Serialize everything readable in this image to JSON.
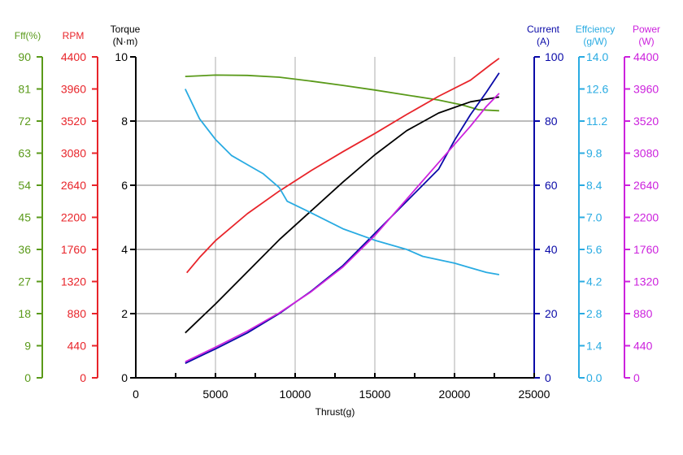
{
  "chart_data": {
    "type": "line",
    "xlabel": "Thrust(g)",
    "xlim": [
      0,
      25000
    ],
    "x_ticks": [
      0,
      5000,
      10000,
      15000,
      20000,
      25000
    ],
    "x_tick_labels": [
      "0",
      "5000",
      "10000",
      "15000",
      "20000",
      "25000"
    ],
    "grid": "vertical lines at x ticks, horizontal lines on Torque ticks",
    "axes": [
      {
        "id": "eff_pct",
        "title": "Fff(%)",
        "color": "#5a9a1a",
        "side": "left",
        "range": [
          0,
          90
        ],
        "tick_labels": [
          "0",
          "9",
          "18",
          "27",
          "36",
          "45",
          "54",
          "63",
          "72",
          "81",
          "90"
        ]
      },
      {
        "id": "rpm",
        "title": "RPM",
        "color": "#e8242a",
        "side": "left",
        "range": [
          0,
          4400
        ],
        "tick_labels": [
          "0",
          "440",
          "880",
          "1320",
          "1760",
          "2200",
          "2640",
          "3080",
          "3520",
          "3960",
          "4400"
        ]
      },
      {
        "id": "torque",
        "title": "Torque",
        "unit": "(N·m)",
        "color": "#000000",
        "side": "left",
        "range": [
          0,
          10
        ],
        "tick_labels": [
          "0",
          "2",
          "4",
          "6",
          "8",
          "10"
        ]
      },
      {
        "id": "current",
        "title": "Current",
        "unit": "(A)",
        "color": "#0a0aa8",
        "side": "right",
        "range": [
          0,
          100
        ],
        "tick_labels": [
          "0",
          "20",
          "40",
          "60",
          "80",
          "100"
        ]
      },
      {
        "id": "efficiency",
        "title": "Effciency",
        "unit": "(g/W)",
        "color": "#29abe2",
        "side": "right",
        "range": [
          0,
          14
        ],
        "tick_labels": [
          "0.0",
          "1.4",
          "2.8",
          "4.2",
          "5.6",
          "7.0",
          "8.4",
          "9.8",
          "11.2",
          "12.6",
          "14.0"
        ]
      },
      {
        "id": "power",
        "title": "Power",
        "unit": "(W)",
        "color": "#cc22dd",
        "side": "right",
        "range": [
          0,
          4400
        ],
        "tick_labels": [
          "0",
          "440",
          "880",
          "1320",
          "1760",
          "2200",
          "2640",
          "3080",
          "3520",
          "3960",
          "4400"
        ]
      }
    ],
    "series": [
      {
        "axis": "eff_pct",
        "color": "#5a9a1a",
        "points": [
          [
            3100,
            84.5
          ],
          [
            5000,
            84.9
          ],
          [
            7000,
            84.8
          ],
          [
            9000,
            84.3
          ],
          [
            11000,
            83.2
          ],
          [
            13000,
            82.0
          ],
          [
            15000,
            80.7
          ],
          [
            17000,
            79.3
          ],
          [
            19000,
            77.9
          ],
          [
            20500,
            76.5
          ],
          [
            21500,
            75.2
          ],
          [
            22800,
            74.9
          ]
        ]
      },
      {
        "axis": "rpm",
        "color": "#e8242a",
        "points": [
          [
            3200,
            1440
          ],
          [
            4000,
            1650
          ],
          [
            5000,
            1880
          ],
          [
            7000,
            2250
          ],
          [
            9000,
            2560
          ],
          [
            11000,
            2840
          ],
          [
            13000,
            3100
          ],
          [
            15000,
            3350
          ],
          [
            17000,
            3610
          ],
          [
            19000,
            3860
          ],
          [
            21000,
            4080
          ],
          [
            22300,
            4300
          ],
          [
            22800,
            4380
          ]
        ]
      },
      {
        "axis": "torque",
        "color": "#000000",
        "points": [
          [
            3100,
            1.4
          ],
          [
            5000,
            2.3
          ],
          [
            7000,
            3.3
          ],
          [
            9000,
            4.3
          ],
          [
            11000,
            5.2
          ],
          [
            13000,
            6.1
          ],
          [
            15000,
            6.95
          ],
          [
            17000,
            7.7
          ],
          [
            19000,
            8.25
          ],
          [
            21000,
            8.6
          ],
          [
            22800,
            8.75
          ]
        ]
      },
      {
        "axis": "current",
        "color": "#0a0aa8",
        "points": [
          [
            3100,
            4.5
          ],
          [
            5000,
            9
          ],
          [
            7000,
            14
          ],
          [
            9000,
            20
          ],
          [
            11000,
            27
          ],
          [
            13000,
            35
          ],
          [
            15000,
            45
          ],
          [
            17000,
            55
          ],
          [
            19000,
            65
          ],
          [
            20000,
            74
          ],
          [
            21000,
            82
          ],
          [
            22000,
            89
          ],
          [
            22800,
            95
          ]
        ]
      },
      {
        "axis": "efficiency",
        "color": "#29abe2",
        "points": [
          [
            3100,
            12.6
          ],
          [
            4000,
            11.3
          ],
          [
            5000,
            10.4
          ],
          [
            6000,
            9.7
          ],
          [
            7000,
            9.3
          ],
          [
            8000,
            8.9
          ],
          [
            9000,
            8.3
          ],
          [
            9500,
            7.7
          ],
          [
            11000,
            7.2
          ],
          [
            13000,
            6.5
          ],
          [
            15000,
            6.0
          ],
          [
            17000,
            5.6
          ],
          [
            18000,
            5.3
          ],
          [
            20000,
            5.0
          ],
          [
            21000,
            4.8
          ],
          [
            22000,
            4.6
          ],
          [
            22800,
            4.5
          ]
        ]
      },
      {
        "axis": "power",
        "color": "#cc22dd",
        "points": [
          [
            3100,
            220
          ],
          [
            5000,
            420
          ],
          [
            7000,
            640
          ],
          [
            9000,
            890
          ],
          [
            11000,
            1180
          ],
          [
            13000,
            1520
          ],
          [
            15000,
            1950
          ],
          [
            17000,
            2450
          ],
          [
            19000,
            2950
          ],
          [
            20000,
            3200
          ],
          [
            21000,
            3450
          ],
          [
            22000,
            3720
          ],
          [
            22800,
            3900
          ]
        ]
      }
    ]
  }
}
